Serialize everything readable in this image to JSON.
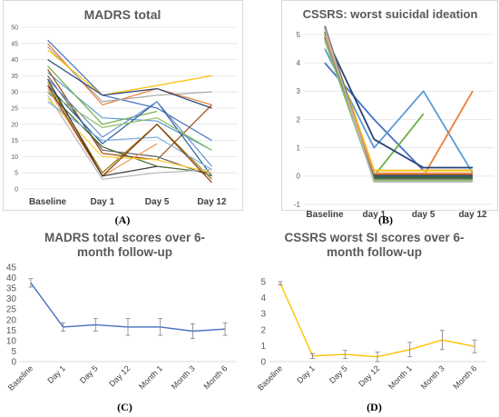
{
  "chart_data": [
    {
      "id": "A",
      "type": "line",
      "title": "MADRS total",
      "panel_label": "(A)",
      "categories": [
        "Baseline",
        "Day 1",
        "Day 5",
        "Day 12"
      ],
      "ylim": [
        0,
        50
      ],
      "yticks": [
        0,
        5,
        10,
        15,
        20,
        25,
        30,
        35,
        40,
        45,
        50
      ],
      "grid": true,
      "series": [
        {
          "color": "#4472C4",
          "values": [
            46,
            29,
            25,
            15
          ]
        },
        {
          "color": "#ED7D31",
          "values": [
            45,
            26,
            31,
            26
          ]
        },
        {
          "color": "#A5A5A5",
          "values": [
            44,
            27,
            29,
            30
          ]
        },
        {
          "color": "#FFC000",
          "values": [
            43,
            29,
            32,
            35
          ]
        },
        {
          "color": "#5B9BD5",
          "values": [
            36,
            22,
            21,
            12
          ]
        },
        {
          "color": "#70AD47",
          "values": [
            38,
            20,
            24,
            null
          ]
        },
        {
          "color": "#264478",
          "values": [
            40,
            29,
            31,
            25
          ]
        },
        {
          "color": "#9E480E",
          "values": [
            37,
            11,
            9,
            26
          ]
        },
        {
          "color": "#636363",
          "values": [
            35,
            12,
            10,
            4
          ]
        },
        {
          "color": "#997300",
          "values": [
            33,
            5,
            20,
            3
          ]
        },
        {
          "color": "#255E91",
          "values": [
            32,
            14,
            27,
            4
          ]
        },
        {
          "color": "#43682B",
          "values": [
            30,
            13,
            7,
            5
          ]
        },
        {
          "color": "#698ED0",
          "values": [
            34,
            16,
            27,
            7
          ]
        },
        {
          "color": "#F1975A",
          "values": [
            31,
            4,
            14,
            null
          ]
        },
        {
          "color": "#B7B7B7",
          "values": [
            29,
            3,
            5,
            6
          ]
        },
        {
          "color": "#FFCD33",
          "values": [
            28,
            10,
            9,
            5
          ]
        },
        {
          "color": "#7CAFDD",
          "values": [
            27,
            15,
            16,
            6
          ]
        },
        {
          "color": "#8CC168",
          "values": [
            30,
            19,
            22,
            12
          ]
        },
        {
          "color": "#843C0C",
          "values": [
            32,
            4,
            20,
            2
          ]
        },
        {
          "color": "#3C3C3C",
          "values": [
            34,
            4,
            7,
            null
          ]
        }
      ]
    },
    {
      "id": "B",
      "type": "line",
      "title": "CSSRS: worst suicidal ideation",
      "panel_label": "(B)",
      "categories": [
        "Baseline",
        "day 1",
        "day 5",
        "day 12"
      ],
      "ylim": [
        -1,
        5
      ],
      "yticks": [
        -1,
        0,
        1,
        2,
        3,
        4,
        5
      ],
      "grid": true,
      "series": [
        {
          "color": "#4472C4",
          "values": [
            4,
            2,
            0.2,
            0.2
          ]
        },
        {
          "color": "#5B9BD5",
          "values": [
            4.5,
            1,
            3,
            0.1
          ]
        },
        {
          "color": "#70AD47",
          "values": [
            5,
            0,
            2.2,
            null
          ]
        },
        {
          "color": "#ED7D31",
          "values": [
            5,
            0,
            0,
            3
          ]
        },
        {
          "color": "#264478",
          "values": [
            5,
            1.3,
            0.3,
            0.3
          ]
        },
        {
          "color": "#FFC000",
          "values": [
            5.2,
            0.2,
            0.2,
            0.2
          ]
        },
        {
          "color": "#A5A5A5",
          "values": [
            5.1,
            0.1,
            0.1,
            0.1
          ]
        },
        {
          "color": "#9E480E",
          "values": [
            5,
            0.05,
            0.05,
            0.05
          ]
        },
        {
          "color": "#636363",
          "values": [
            5.3,
            -0.1,
            -0.1,
            -0.1
          ]
        },
        {
          "color": "#997300",
          "values": [
            5,
            0,
            0,
            0
          ]
        },
        {
          "color": "#255E91",
          "values": [
            4.9,
            0,
            0,
            0
          ]
        },
        {
          "color": "#43682B",
          "values": [
            5.1,
            -0.05,
            -0.05,
            -0.05
          ]
        },
        {
          "color": "#F1975A",
          "values": [
            5,
            0.1,
            0.1,
            0.1
          ]
        },
        {
          "color": "#8CC168",
          "values": [
            4.8,
            -0.15,
            -0.15,
            -0.15
          ]
        },
        {
          "color": "#B7B7B7",
          "values": [
            5.2,
            -0.2,
            -0.2,
            -0.2
          ]
        }
      ]
    },
    {
      "id": "C",
      "type": "line",
      "title": "MADRS total scores over 6-month follow-up",
      "title_lines": [
        "MADRS total scores over 6-",
        "month follow-up"
      ],
      "panel_label": "(C)",
      "categories": [
        "Baseline",
        "Day 1",
        "Day 5",
        "Day 12",
        "Month 1",
        "Month 3",
        "Month 6"
      ],
      "ylim": [
        0,
        45
      ],
      "yticks": [
        0,
        5,
        10,
        15,
        20,
        25,
        30,
        35,
        40,
        45
      ],
      "grid": false,
      "series": [
        {
          "color": "#4472C4",
          "values": [
            37.5,
            16.5,
            17.5,
            16.5,
            16.5,
            14.5,
            15.5
          ],
          "err": [
            2,
            2,
            3,
            4,
            4,
            3.5,
            3
          ]
        }
      ]
    },
    {
      "id": "D",
      "type": "line",
      "title": "CSSRS worst SI scores over 6-month follow-up",
      "title_lines": [
        "CSSRS worst SI scores over 6-",
        "month follow-up"
      ],
      "panel_label": "(D)",
      "categories": [
        "Baseline",
        "Day 1",
        "Day 5",
        "Day 12",
        "Month 1",
        "Month 3",
        "Month 6"
      ],
      "ylim": [
        0,
        5
      ],
      "yticks": [
        0,
        1,
        2,
        3,
        4,
        5
      ],
      "grid": false,
      "series": [
        {
          "color": "#FFC000",
          "values": [
            4.9,
            0.35,
            0.45,
            0.3,
            0.75,
            1.35,
            0.95
          ],
          "err": [
            0.1,
            0.15,
            0.25,
            0.3,
            0.45,
            0.6,
            0.4
          ]
        }
      ]
    }
  ]
}
